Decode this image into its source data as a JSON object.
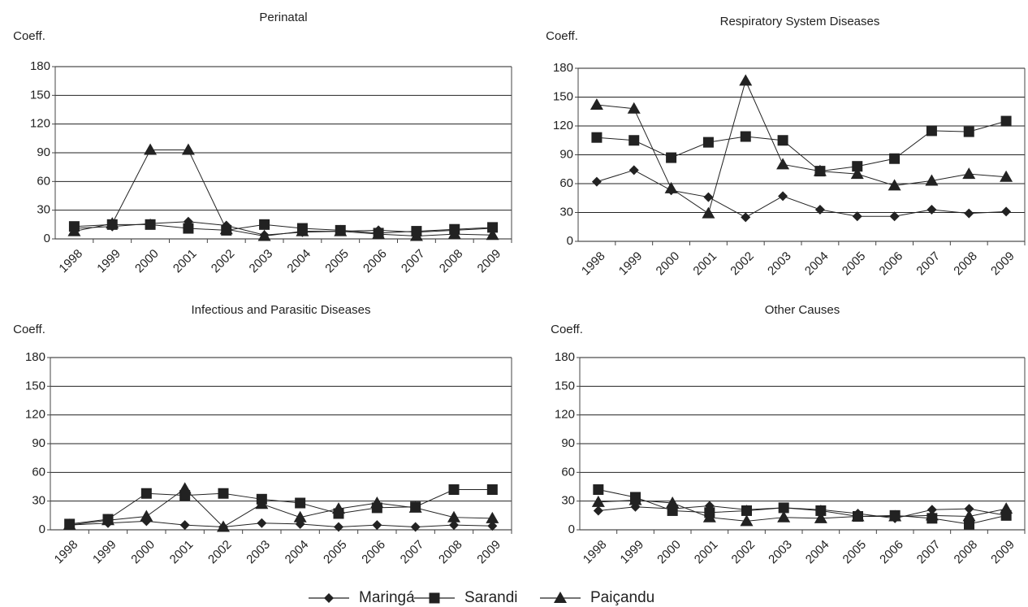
{
  "chart_data": [
    {
      "type": "line",
      "title": "Perinatal",
      "y_label": "Coeff.",
      "categories": [
        "1998",
        "1999",
        "2000",
        "2001",
        "2002",
        "2003",
        "2004",
        "2005",
        "2006",
        "2007",
        "2008",
        "2009"
      ],
      "ylim": [
        0,
        180
      ],
      "yticks": [
        0,
        30,
        60,
        90,
        120,
        150,
        180
      ],
      "grid": true,
      "series": [
        {
          "name": "Maringá",
          "color": "#222222",
          "marker": "diamond",
          "values": [
            11,
            13,
            16,
            18,
            14,
            4,
            7,
            8,
            9,
            7,
            9,
            11
          ]
        },
        {
          "name": "Sarandi",
          "color": "#222222",
          "marker": "square",
          "values": [
            13,
            15,
            15,
            11,
            9,
            15,
            11,
            9,
            6,
            8,
            10,
            12
          ]
        },
        {
          "name": "Paiçandu",
          "color": "#222222",
          "marker": "triangle",
          "values": [
            8,
            16,
            93,
            93,
            10,
            3,
            8,
            8,
            5,
            3,
            5,
            4
          ]
        }
      ]
    },
    {
      "type": "line",
      "title": "Respiratory System Diseases",
      "y_label": "Coeff.",
      "categories": [
        "1998",
        "1999",
        "2000",
        "2001",
        "2002",
        "2003",
        "2004",
        "2005",
        "2006",
        "2007",
        "2008",
        "2009"
      ],
      "ylim": [
        0,
        180
      ],
      "yticks": [
        0,
        30,
        60,
        90,
        120,
        150,
        180
      ],
      "grid": true,
      "series": [
        {
          "name": "Maringá",
          "color": "#222222",
          "marker": "diamond",
          "values": [
            62,
            74,
            53,
            46,
            25,
            47,
            33,
            26,
            26,
            33,
            29,
            31
          ]
        },
        {
          "name": "Sarandi",
          "color": "#222222",
          "marker": "square",
          "values": [
            108,
            105,
            87,
            103,
            109,
            105,
            73,
            78,
            86,
            115,
            114,
            125
          ]
        },
        {
          "name": "Paiçandu",
          "color": "#222222",
          "marker": "triangle",
          "values": [
            142,
            138,
            55,
            29,
            167,
            80,
            73,
            70,
            58,
            63,
            70,
            67
          ]
        }
      ]
    },
    {
      "type": "line",
      "title": "Infectious and Parasitic Diseases",
      "y_label": "Coeff.",
      "categories": [
        "1998",
        "1999",
        "2000",
        "2001",
        "2002",
        "2003",
        "2004",
        "2005",
        "2006",
        "2007",
        "2008",
        "2009"
      ],
      "ylim": [
        0,
        180
      ],
      "yticks": [
        0,
        30,
        60,
        90,
        120,
        150,
        180
      ],
      "grid": true,
      "series": [
        {
          "name": "Maringá",
          "color": "#222222",
          "marker": "diamond",
          "values": [
            5,
            7,
            9,
            5,
            3,
            7,
            6,
            3,
            5,
            3,
            5,
            4
          ]
        },
        {
          "name": "Sarandi",
          "color": "#222222",
          "marker": "square",
          "values": [
            6,
            11,
            38,
            36,
            38,
            32,
            28,
            17,
            23,
            24,
            42,
            42
          ]
        },
        {
          "name": "Paiçandu",
          "color": "#222222",
          "marker": "triangle",
          "values": [
            5,
            10,
            14,
            43,
            3,
            27,
            13,
            22,
            28,
            23,
            13,
            12
          ]
        }
      ]
    },
    {
      "type": "line",
      "title": "Other Causes",
      "y_label": "Coeff.",
      "categories": [
        "1998",
        "1999",
        "2000",
        "2001",
        "2002",
        "2003",
        "2004",
        "2005",
        "2006",
        "2007",
        "2008",
        "2009"
      ],
      "ylim": [
        0,
        180
      ],
      "yticks": [
        0,
        30,
        60,
        90,
        120,
        150,
        180
      ],
      "grid": true,
      "series": [
        {
          "name": "Maringá",
          "color": "#222222",
          "marker": "diamond",
          "values": [
            20,
            24,
            22,
            25,
            21,
            23,
            21,
            17,
            12,
            21,
            22,
            15
          ]
        },
        {
          "name": "Sarandi",
          "color": "#222222",
          "marker": "square",
          "values": [
            42,
            34,
            20,
            18,
            20,
            23,
            20,
            14,
            15,
            12,
            6,
            15
          ]
        },
        {
          "name": "Paiçandu",
          "color": "#222222",
          "marker": "triangle",
          "values": [
            29,
            31,
            28,
            13,
            9,
            13,
            12,
            14,
            14,
            15,
            14,
            22
          ]
        }
      ]
    }
  ]
}
